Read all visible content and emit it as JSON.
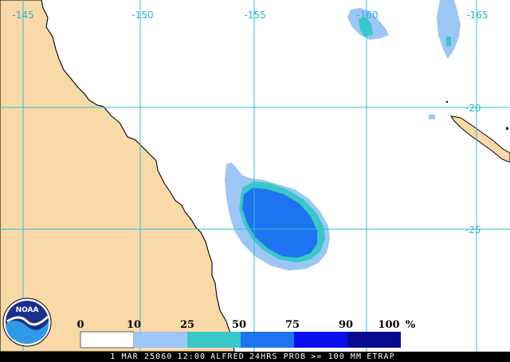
{
  "map": {
    "longitude_labels": [
      "-145",
      "-150",
      "-155",
      "-160",
      "-165"
    ],
    "latitude_labels": [
      "-20",
      "-25"
    ],
    "colors": {
      "ocean": "#ffffff",
      "land": "#f8d9a7",
      "grid": "#2bc0d8",
      "coast": "#000000",
      "prob_10_25": "#9cc6f6",
      "prob_25_50": "#38c8c8",
      "prob_50_75": "#1e74f0",
      "prob_75_90": "#0a0ff0",
      "prob_90_100": "#0a0a90"
    }
  },
  "logo": {
    "text": "NOAA"
  },
  "scale": {
    "labels": [
      "0",
      "10",
      "25",
      "50",
      "75",
      "90",
      "100"
    ],
    "unit": "%",
    "colors": [
      "#ffffff",
      "#9cc6f6",
      "#38c8c8",
      "#1e74f0",
      "#0a0ff0",
      "#0a0a90"
    ]
  },
  "footer": {
    "date": "1 MAR 25060",
    "time": "12:00",
    "storm": "ALFRED",
    "product": "24HRS PROB",
    "threshold": ">= 100 MM",
    "model": "ETRAP"
  }
}
